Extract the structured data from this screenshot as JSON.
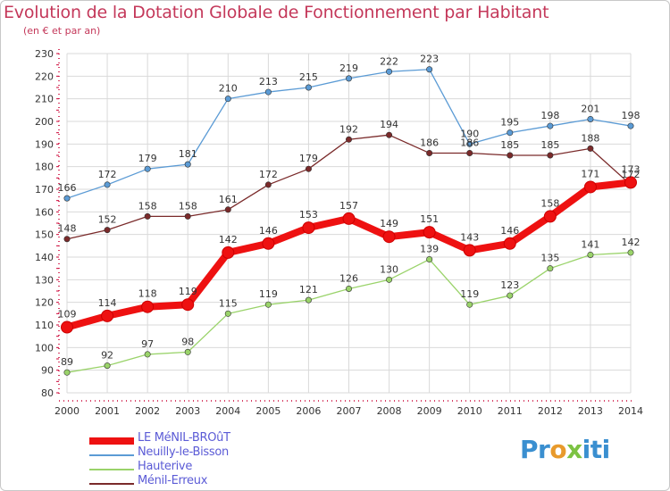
{
  "title": "Evolution de la Dotation Globale de Fonctionnement par Habitant",
  "subtitle": "(en € et par an)",
  "brand": {
    "p1": "Pr",
    "o": "o",
    "x": "x",
    "p2": "iti"
  },
  "colors": {
    "title": "#c4385a",
    "legend_text": "#5b5bd6",
    "axis": "#cc0033",
    "grid": "#d9d9d9"
  },
  "chart_data": {
    "type": "line",
    "title": "Evolution de la Dotation Globale de Fonctionnement par Habitant",
    "subtitle": "(en € et par an)",
    "xlabel": "",
    "ylabel": "",
    "x": [
      "2000",
      "2001",
      "2002",
      "2003",
      "2004",
      "2005",
      "2006",
      "2007",
      "2008",
      "2009",
      "2010",
      "2011",
      "2012",
      "2013",
      "2014"
    ],
    "ylim": [
      80,
      230
    ],
    "yticks": [
      80,
      90,
      100,
      110,
      120,
      130,
      140,
      150,
      160,
      170,
      180,
      190,
      200,
      210,
      220,
      230
    ],
    "grid": true,
    "legend_position": "bottom-left",
    "series": [
      {
        "name": "LE MéNIL-BROûT",
        "color": "#ee1111",
        "values": [
          109,
          114,
          118,
          119,
          142,
          146,
          153,
          157,
          149,
          151,
          143,
          146,
          158,
          171,
          173
        ]
      },
      {
        "name": "Neuilly-le-Bisson",
        "color": "#5b9bd5",
        "values": [
          166,
          172,
          179,
          181,
          210,
          213,
          215,
          219,
          222,
          223,
          190,
          195,
          198,
          201,
          198
        ]
      },
      {
        "name": "Hauterive",
        "color": "#9ad36a",
        "values": [
          89,
          92,
          97,
          98,
          115,
          119,
          121,
          126,
          130,
          139,
          119,
          123,
          135,
          141,
          142
        ]
      },
      {
        "name": "Ménil-Erreux",
        "color": "#7a2a2a",
        "values": [
          148,
          152,
          158,
          158,
          161,
          172,
          179,
          192,
          194,
          186,
          186,
          185,
          185,
          188,
          172
        ]
      }
    ]
  }
}
